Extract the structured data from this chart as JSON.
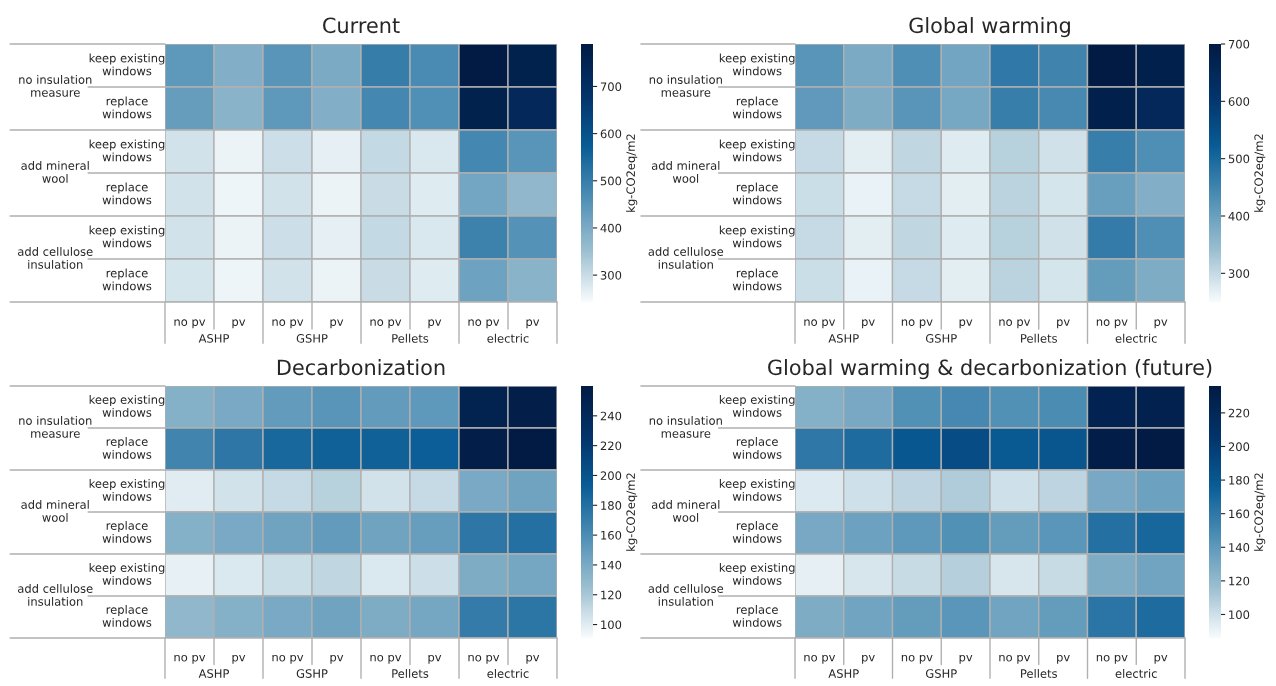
{
  "chart_data": [
    {
      "type": "heatmap",
      "title": "Current",
      "clabel": "kg-CO2eq/m2",
      "clim": [
        243,
        790
      ],
      "cticks": [
        300,
        400,
        500,
        600,
        700
      ],
      "categories": [
        "no pv",
        "pv",
        "no pv",
        "pv",
        "no pv",
        "pv",
        "no pv",
        "pv"
      ],
      "annotations": [
        "ASHP",
        "GSHP",
        "Pellets",
        "electric"
      ],
      "y_categories": [
        "keep existing\nwindows",
        "replace\nwindows",
        "keep existing\nwindows",
        "replace\nwindows",
        "keep existing\nwindows",
        "replace\nwindows"
      ],
      "y2_categories": [
        "no insulation\nmeasure",
        null,
        "add mineral\nwool",
        null,
        "add cellulose\ninsulation",
        null
      ],
      "cells": [
        [
          440,
          390,
          450,
          400,
          500,
          470,
          790,
          760
        ],
        [
          430,
          380,
          440,
          390,
          480,
          460,
          760,
          730
        ],
        [
          290,
          260,
          295,
          265,
          305,
          280,
          480,
          450
        ],
        [
          290,
          255,
          290,
          260,
          300,
          275,
          410,
          370
        ],
        [
          290,
          260,
          295,
          265,
          305,
          280,
          490,
          455
        ],
        [
          285,
          255,
          290,
          260,
          300,
          275,
          420,
          380
        ]
      ]
    },
    {
      "type": "heatmap",
      "title": "Global warming",
      "clabel": "kg-CO2eq/m2",
      "clim": [
        250,
        700
      ],
      "cticks": [
        300,
        400,
        500,
        600,
        700
      ],
      "categories": [
        "no pv",
        "pv",
        "no pv",
        "pv",
        "no pv",
        "pv",
        "no pv",
        "pv"
      ],
      "annotations": [
        "ASHP",
        "GSHP",
        "Pellets",
        "electric"
      ],
      "y_categories": [
        "keep existing\nwindows",
        "replace\nwindows",
        "keep existing\nwindows",
        "replace\nwindows",
        "keep existing\nwindows",
        "replace\nwindows"
      ],
      "y2_categories": [
        "no insulation\nmeasure",
        null,
        "add mineral\nwool",
        null,
        "add cellulose\ninsulation",
        null
      ],
      "cells": [
        [
          420,
          380,
          430,
          390,
          470,
          450,
          700,
          680
        ],
        [
          410,
          375,
          420,
          385,
          460,
          440,
          680,
          650
        ],
        [
          300,
          270,
          305,
          275,
          315,
          290,
          460,
          430
        ],
        [
          295,
          265,
          300,
          270,
          310,
          285,
          400,
          370
        ],
        [
          300,
          270,
          305,
          275,
          315,
          290,
          465,
          430
        ],
        [
          295,
          265,
          300,
          270,
          310,
          285,
          405,
          375
        ]
      ]
    },
    {
      "type": "heatmap",
      "title": "Decarbonization",
      "clabel": "kg-CO2eq/m2",
      "clim": [
        91,
        260
      ],
      "cticks": [
        100,
        120,
        140,
        160,
        180,
        200,
        220,
        240
      ],
      "categories": [
        "no pv",
        "pv",
        "no pv",
        "pv",
        "no pv",
        "pv",
        "no pv",
        "pv"
      ],
      "annotations": [
        "ASHP",
        "GSHP",
        "Pellets",
        "electric"
      ],
      "y_categories": [
        "keep existing\nwindows",
        "replace\nwindows",
        "keep existing\nwindows",
        "replace\nwindows",
        "keep existing\nwindows",
        "replace\nwindows"
      ],
      "y2_categories": [
        "no insulation\nmeasure",
        null,
        "add mineral\nwool",
        null,
        "add cellulose\ninsulation",
        null
      ],
      "cells": [
        [
          135,
          140,
          150,
          155,
          150,
          152,
          250,
          255
        ],
        [
          165,
          175,
          185,
          190,
          190,
          192,
          255,
          260
        ],
        [
          100,
          105,
          110,
          115,
          105,
          110,
          140,
          145
        ],
        [
          135,
          140,
          145,
          150,
          145,
          148,
          175,
          180
        ],
        [
          97,
          102,
          108,
          112,
          102,
          107,
          138,
          142
        ],
        [
          130,
          135,
          140,
          145,
          138,
          142,
          172,
          176
        ]
      ]
    },
    {
      "type": "heatmap",
      "title": "Global warming & decarbonization (future)",
      "clabel": "kg-CO2eq/m2",
      "clim": [
        86,
        236
      ],
      "cticks": [
        100,
        120,
        140,
        160,
        180,
        200,
        220
      ],
      "categories": [
        "no pv",
        "pv",
        "no pv",
        "pv",
        "no pv",
        "pv",
        "no pv",
        "pv"
      ],
      "annotations": [
        "ASHP",
        "GSHP",
        "Pellets",
        "electric"
      ],
      "y_categories": [
        "keep existing\nwindows",
        "replace\nwindows",
        "keep existing\nwindows",
        "replace\nwindows",
        "keep existing\nwindows",
        "replace\nwindows"
      ],
      "y2_categories": [
        "no insulation\nmeasure",
        null,
        "add mineral\nwool",
        null,
        "add cellulose\ninsulation",
        null
      ],
      "cells": [
        [
          125,
          130,
          145,
          150,
          145,
          148,
          225,
          228
        ],
        [
          160,
          168,
          180,
          188,
          178,
          182,
          232,
          236
        ],
        [
          95,
          100,
          105,
          110,
          100,
          105,
          130,
          135
        ],
        [
          130,
          135,
          140,
          145,
          138,
          142,
          165,
          170
        ],
        [
          92,
          97,
          102,
          108,
          97,
          102,
          128,
          133
        ],
        [
          128,
          133,
          138,
          142,
          133,
          138,
          162,
          167
        ]
      ]
    }
  ]
}
